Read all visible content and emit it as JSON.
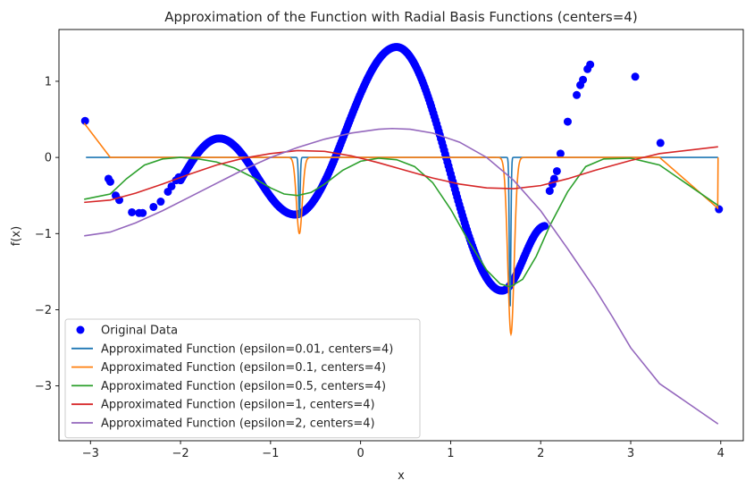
{
  "chart_data": {
    "type": "line",
    "title": "Approximation of the Function with Radial Basis Functions (centers=4)",
    "xlabel": "x",
    "ylabel": "f(x)",
    "xlim": [
      -3.35,
      4.25
    ],
    "ylim": [
      -3.72,
      1.68
    ],
    "xticks": [
      -3,
      -2,
      -1,
      0,
      1,
      2,
      3,
      4
    ],
    "yticks": [
      -3,
      -2,
      -1,
      0,
      1
    ],
    "tick_labels_x": [
      "−3",
      "−2",
      "−1",
      "0",
      "1",
      "2",
      "3",
      "4"
    ],
    "tick_labels_y": [
      "−3",
      "−2",
      "−1",
      "0",
      "1"
    ],
    "grid": false,
    "legend_position": "lower-left",
    "scatter": {
      "name": "Original Data",
      "color": "#0000ff",
      "points": [
        [
          -3.06,
          0.48
        ],
        [
          -2.8,
          -0.28
        ],
        [
          -2.78,
          -0.32
        ],
        [
          -2.72,
          -0.5
        ],
        [
          -2.68,
          -0.56
        ],
        [
          -2.54,
          -0.72
        ],
        [
          -2.46,
          -0.73
        ],
        [
          -2.42,
          -0.73
        ],
        [
          -2.3,
          -0.65
        ],
        [
          -2.22,
          -0.58
        ],
        [
          -2.14,
          -0.45
        ],
        [
          -2.1,
          -0.38
        ],
        [
          -2.05,
          -0.3
        ],
        [
          -2.02,
          -0.26
        ],
        [
          2.1,
          -0.44
        ],
        [
          2.13,
          -0.35
        ],
        [
          2.15,
          -0.28
        ],
        [
          2.18,
          -0.18
        ],
        [
          2.22,
          0.05
        ],
        [
          2.3,
          0.47
        ],
        [
          2.4,
          0.82
        ],
        [
          2.44,
          0.95
        ],
        [
          2.47,
          1.02
        ],
        [
          2.52,
          1.16
        ],
        [
          2.55,
          1.22
        ],
        [
          3.05,
          1.06
        ],
        [
          3.33,
          0.19
        ],
        [
          3.98,
          -0.68
        ]
      ],
      "dense_segments": [
        {
          "from": -2.0,
          "to": 1.57,
          "shape": "sin"
        },
        {
          "from": 1.57,
          "to": 2.05,
          "shape": "sin"
        }
      ]
    },
    "series": [
      {
        "name": "Approximated Function (epsilon=0.01, centers=4)",
        "color": "#1f77b4",
        "points": [
          [
            -3.05,
            0.0
          ],
          [
            1.64,
            0.0
          ],
          [
            1.66,
            -2.0
          ],
          [
            1.68,
            0.0
          ],
          [
            3.97,
            0.0
          ]
        ],
        "narrow_dips": [
          [
            -0.68,
            -0.8,
            0.012
          ],
          [
            1.66,
            -2.0,
            0.012
          ]
        ]
      },
      {
        "name": "Approximated Function (epsilon=0.1, centers=4)",
        "color": "#ff7f0e",
        "points": [
          [
            -3.07,
            0.45
          ],
          [
            -2.78,
            0.0
          ],
          [
            3.32,
            0.0
          ],
          [
            3.97,
            -0.67
          ]
        ],
        "narrow_dips": [
          [
            -0.68,
            -1.0,
            0.045
          ],
          [
            1.67,
            -2.32,
            0.05
          ]
        ]
      },
      {
        "name": "Approximated Function (epsilon=0.5, centers=4)",
        "color": "#2ca02c",
        "points": [
          [
            -3.07,
            -0.55
          ],
          [
            -2.78,
            -0.48
          ],
          [
            -2.6,
            -0.28
          ],
          [
            -2.4,
            -0.1
          ],
          [
            -2.2,
            -0.02
          ],
          [
            -2.0,
            0.0
          ],
          [
            -1.8,
            -0.02
          ],
          [
            -1.6,
            -0.06
          ],
          [
            -1.4,
            -0.14
          ],
          [
            -1.2,
            -0.26
          ],
          [
            -1.0,
            -0.4
          ],
          [
            -0.85,
            -0.48
          ],
          [
            -0.7,
            -0.5
          ],
          [
            -0.55,
            -0.46
          ],
          [
            -0.4,
            -0.35
          ],
          [
            -0.2,
            -0.17
          ],
          [
            0.0,
            -0.05
          ],
          [
            0.2,
            -0.01
          ],
          [
            0.4,
            -0.03
          ],
          [
            0.6,
            -0.12
          ],
          [
            0.8,
            -0.33
          ],
          [
            1.0,
            -0.68
          ],
          [
            1.2,
            -1.1
          ],
          [
            1.4,
            -1.48
          ],
          [
            1.55,
            -1.66
          ],
          [
            1.66,
            -1.7
          ],
          [
            1.8,
            -1.6
          ],
          [
            1.95,
            -1.3
          ],
          [
            2.1,
            -0.9
          ],
          [
            2.3,
            -0.45
          ],
          [
            2.5,
            -0.12
          ],
          [
            2.7,
            -0.02
          ],
          [
            3.0,
            -0.01
          ],
          [
            3.32,
            -0.1
          ],
          [
            3.97,
            -0.63
          ]
        ]
      },
      {
        "name": "Approximated Function (epsilon=1, centers=4)",
        "color": "#d62728",
        "points": [
          [
            -3.07,
            -0.59
          ],
          [
            -2.78,
            -0.56
          ],
          [
            -2.5,
            -0.47
          ],
          [
            -2.2,
            -0.35
          ],
          [
            -1.9,
            -0.22
          ],
          [
            -1.6,
            -0.1
          ],
          [
            -1.3,
            -0.01
          ],
          [
            -1.0,
            0.05
          ],
          [
            -0.7,
            0.09
          ],
          [
            -0.4,
            0.08
          ],
          [
            -0.1,
            0.02
          ],
          [
            0.2,
            -0.07
          ],
          [
            0.5,
            -0.17
          ],
          [
            0.8,
            -0.27
          ],
          [
            1.1,
            -0.35
          ],
          [
            1.4,
            -0.4
          ],
          [
            1.7,
            -0.41
          ],
          [
            2.0,
            -0.37
          ],
          [
            2.3,
            -0.28
          ],
          [
            2.6,
            -0.17
          ],
          [
            3.0,
            -0.04
          ],
          [
            3.32,
            0.05
          ],
          [
            3.97,
            0.14
          ]
        ]
      },
      {
        "name": "Approximated Function (epsilon=2, centers=4)",
        "color": "#9467bd",
        "points": [
          [
            -3.07,
            -1.03
          ],
          [
            -2.78,
            -0.98
          ],
          [
            -2.5,
            -0.86
          ],
          [
            -2.2,
            -0.7
          ],
          [
            -1.9,
            -0.52
          ],
          [
            -1.6,
            -0.34
          ],
          [
            -1.3,
            -0.16
          ],
          [
            -1.0,
            0.0
          ],
          [
            -0.7,
            0.13
          ],
          [
            -0.4,
            0.24
          ],
          [
            -0.1,
            0.32
          ],
          [
            0.2,
            0.37
          ],
          [
            0.35,
            0.38
          ],
          [
            0.55,
            0.37
          ],
          [
            0.8,
            0.32
          ],
          [
            1.1,
            0.2
          ],
          [
            1.4,
            0.0
          ],
          [
            1.7,
            -0.3
          ],
          [
            2.0,
            -0.7
          ],
          [
            2.3,
            -1.2
          ],
          [
            2.6,
            -1.72
          ],
          [
            2.8,
            -2.1
          ],
          [
            3.0,
            -2.5
          ],
          [
            3.32,
            -2.97
          ],
          [
            3.97,
            -3.5
          ]
        ]
      }
    ]
  }
}
